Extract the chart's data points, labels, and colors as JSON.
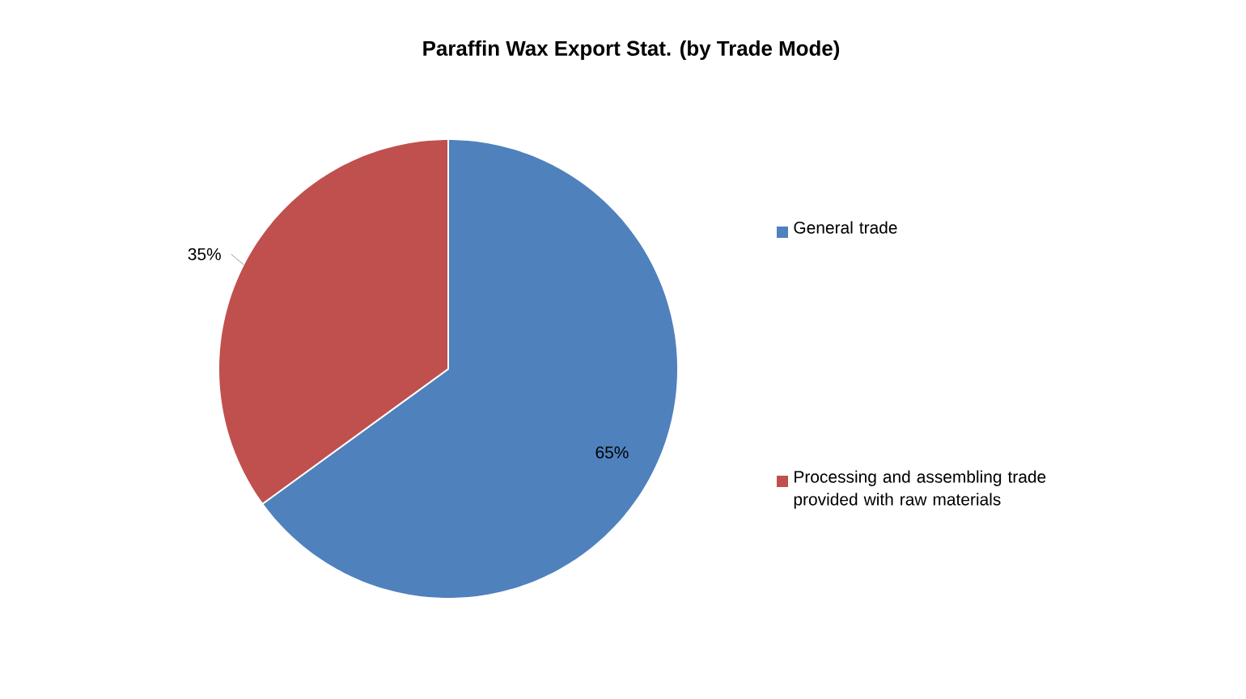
{
  "chart_data": {
    "type": "pie",
    "title": "Paraffin Wax Export Stat. (by Trade Mode)",
    "categories": [
      "General trade",
      "Processing and assembling trade provided with raw materials"
    ],
    "values": [
      65,
      35
    ],
    "colors": [
      "#4f81bd",
      "#c0504d"
    ],
    "value_labels": [
      "65%",
      "35%"
    ],
    "legend": "right"
  }
}
